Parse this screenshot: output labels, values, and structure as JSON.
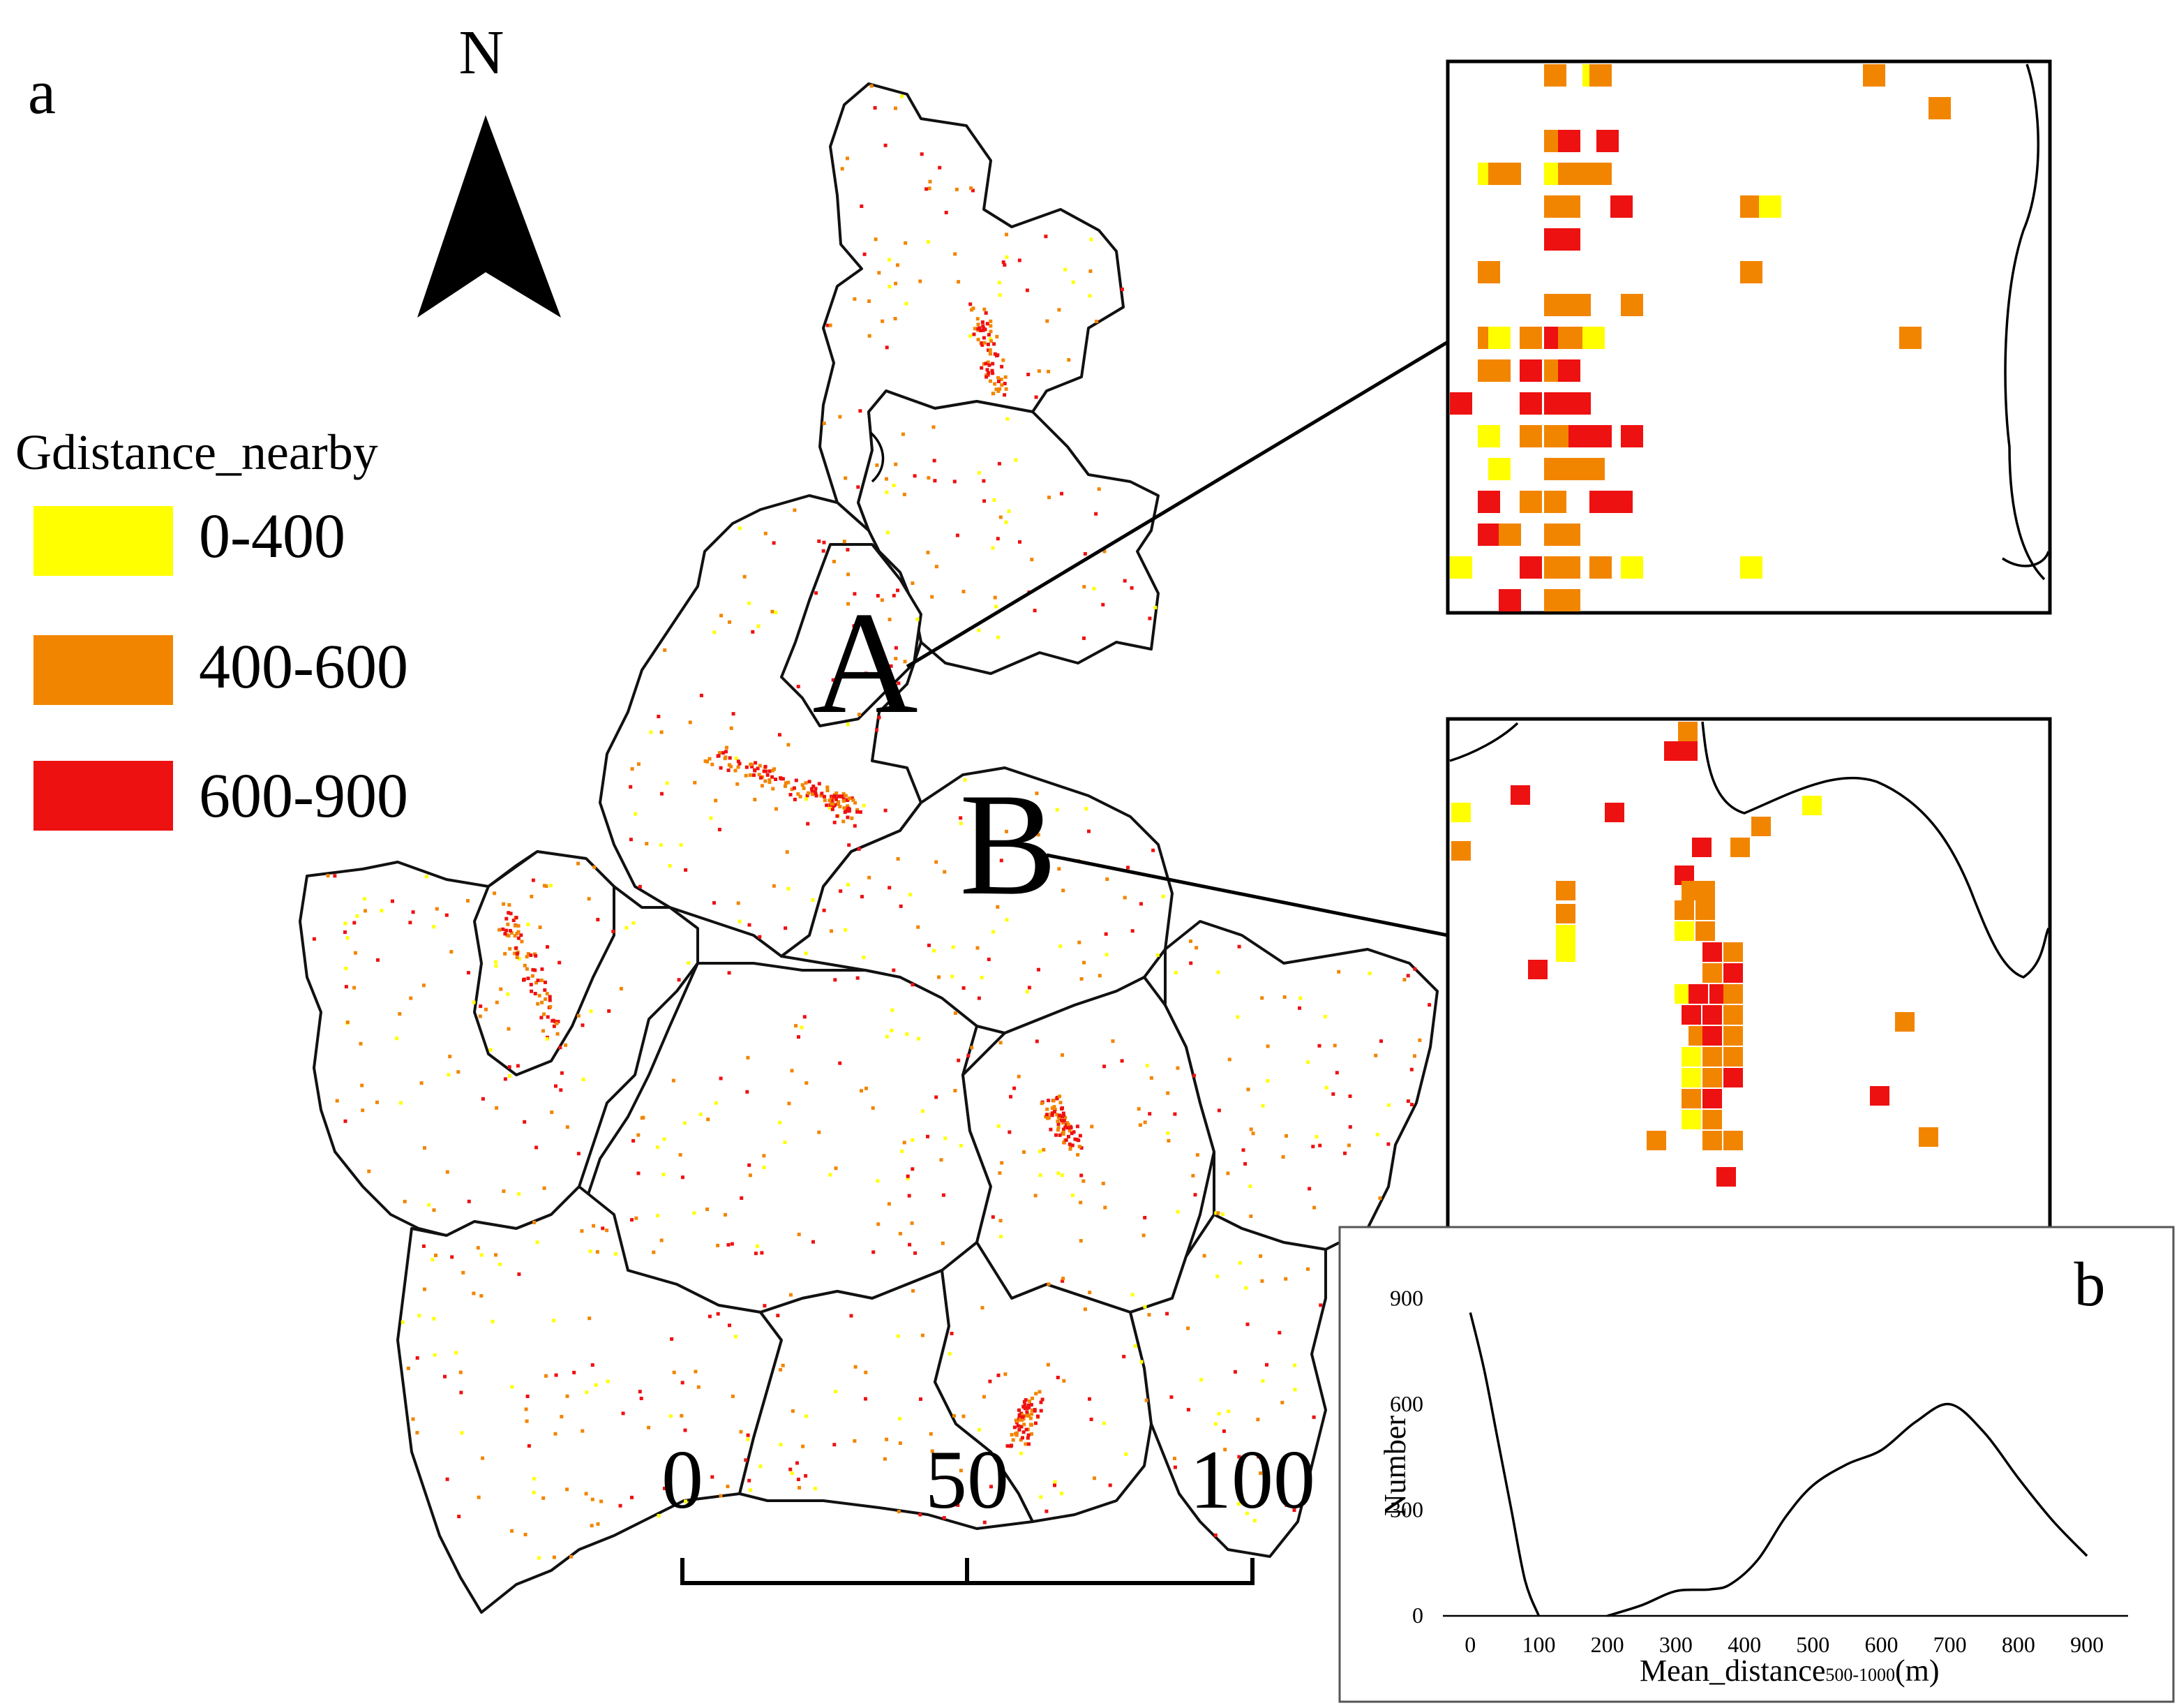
{
  "figure": {
    "panel_a_label": "a",
    "panel_b_label": "b",
    "north_label": "N",
    "icon": "north-arrow-icon"
  },
  "legend": {
    "title": "Gdistance_nearby",
    "items": [
      {
        "label": "0-400",
        "color": "#ffff00"
      },
      {
        "label": "400-600",
        "color": "#f28500"
      },
      {
        "label": "600-900",
        "color": "#ee1111"
      }
    ]
  },
  "map": {
    "callout_a": "A",
    "callout_b": "B",
    "scale_bar": {
      "ticks": [
        "0",
        "50",
        "100"
      ]
    }
  },
  "chart_data": {
    "type": "line",
    "title": "",
    "xlabel": "Mean_distance",
    "xlabel_subscript": "500-1000",
    "xlabel_unit": "(m)",
    "ylabel": "Number",
    "xlim": [
      -40,
      960
    ],
    "ylim": [
      0,
      950
    ],
    "x_ticks": [
      "0",
      "100",
      "200",
      "300",
      "400",
      "500",
      "600",
      "700",
      "800",
      "900"
    ],
    "y_ticks": [
      "0",
      "300",
      "600",
      "900"
    ],
    "grid": false,
    "series": [
      {
        "name": "",
        "x": [
          0,
          20,
          40,
          60,
          80,
          100
        ],
        "y": [
          860,
          700,
          500,
          300,
          100,
          0
        ]
      },
      {
        "name": "",
        "x": [
          200,
          250,
          300,
          350,
          380,
          420,
          460,
          500,
          550,
          600,
          650,
          700,
          750,
          800,
          850,
          900
        ],
        "y": [
          0,
          30,
          70,
          75,
          90,
          160,
          280,
          370,
          430,
          470,
          550,
          600,
          520,
          390,
          270,
          170
        ]
      }
    ]
  }
}
